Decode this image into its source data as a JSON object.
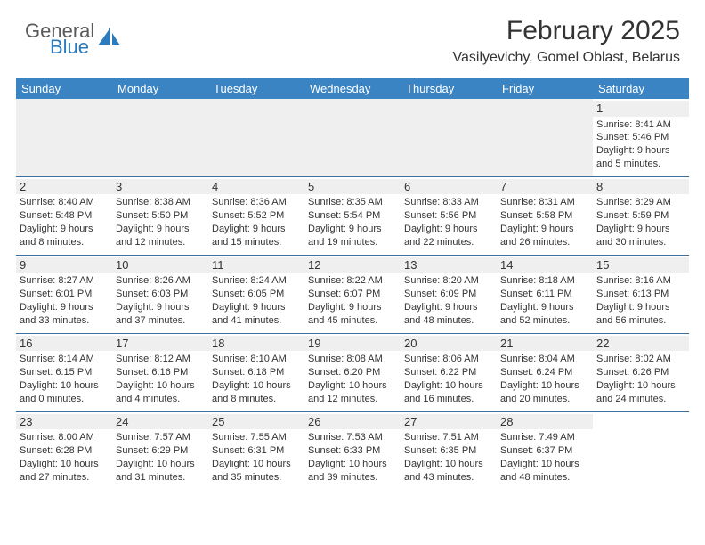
{
  "brand": {
    "line1": "General",
    "line2": "Blue"
  },
  "title": "February 2025",
  "location": "Vasilyevichy, Gomel Oblast, Belarus",
  "colors": {
    "header_bg": "#3b84c4",
    "header_text": "#ffffff",
    "rule": "#3b6fa0",
    "daynum_bg": "#efefef",
    "brand_blue": "#2b7bbf",
    "text": "#333333",
    "page_bg": "#ffffff"
  },
  "weekdays": [
    "Sunday",
    "Monday",
    "Tuesday",
    "Wednesday",
    "Thursday",
    "Friday",
    "Saturday"
  ],
  "weeks": [
    [
      null,
      null,
      null,
      null,
      null,
      null,
      {
        "n": "1",
        "sr": "Sunrise: 8:41 AM",
        "ss": "Sunset: 5:46 PM",
        "d1": "Daylight: 9 hours",
        "d2": "and 5 minutes."
      }
    ],
    [
      {
        "n": "2",
        "sr": "Sunrise: 8:40 AM",
        "ss": "Sunset: 5:48 PM",
        "d1": "Daylight: 9 hours",
        "d2": "and 8 minutes."
      },
      {
        "n": "3",
        "sr": "Sunrise: 8:38 AM",
        "ss": "Sunset: 5:50 PM",
        "d1": "Daylight: 9 hours",
        "d2": "and 12 minutes."
      },
      {
        "n": "4",
        "sr": "Sunrise: 8:36 AM",
        "ss": "Sunset: 5:52 PM",
        "d1": "Daylight: 9 hours",
        "d2": "and 15 minutes."
      },
      {
        "n": "5",
        "sr": "Sunrise: 8:35 AM",
        "ss": "Sunset: 5:54 PM",
        "d1": "Daylight: 9 hours",
        "d2": "and 19 minutes."
      },
      {
        "n": "6",
        "sr": "Sunrise: 8:33 AM",
        "ss": "Sunset: 5:56 PM",
        "d1": "Daylight: 9 hours",
        "d2": "and 22 minutes."
      },
      {
        "n": "7",
        "sr": "Sunrise: 8:31 AM",
        "ss": "Sunset: 5:58 PM",
        "d1": "Daylight: 9 hours",
        "d2": "and 26 minutes."
      },
      {
        "n": "8",
        "sr": "Sunrise: 8:29 AM",
        "ss": "Sunset: 5:59 PM",
        "d1": "Daylight: 9 hours",
        "d2": "and 30 minutes."
      }
    ],
    [
      {
        "n": "9",
        "sr": "Sunrise: 8:27 AM",
        "ss": "Sunset: 6:01 PM",
        "d1": "Daylight: 9 hours",
        "d2": "and 33 minutes."
      },
      {
        "n": "10",
        "sr": "Sunrise: 8:26 AM",
        "ss": "Sunset: 6:03 PM",
        "d1": "Daylight: 9 hours",
        "d2": "and 37 minutes."
      },
      {
        "n": "11",
        "sr": "Sunrise: 8:24 AM",
        "ss": "Sunset: 6:05 PM",
        "d1": "Daylight: 9 hours",
        "d2": "and 41 minutes."
      },
      {
        "n": "12",
        "sr": "Sunrise: 8:22 AM",
        "ss": "Sunset: 6:07 PM",
        "d1": "Daylight: 9 hours",
        "d2": "and 45 minutes."
      },
      {
        "n": "13",
        "sr": "Sunrise: 8:20 AM",
        "ss": "Sunset: 6:09 PM",
        "d1": "Daylight: 9 hours",
        "d2": "and 48 minutes."
      },
      {
        "n": "14",
        "sr": "Sunrise: 8:18 AM",
        "ss": "Sunset: 6:11 PM",
        "d1": "Daylight: 9 hours",
        "d2": "and 52 minutes."
      },
      {
        "n": "15",
        "sr": "Sunrise: 8:16 AM",
        "ss": "Sunset: 6:13 PM",
        "d1": "Daylight: 9 hours",
        "d2": "and 56 minutes."
      }
    ],
    [
      {
        "n": "16",
        "sr": "Sunrise: 8:14 AM",
        "ss": "Sunset: 6:15 PM",
        "d1": "Daylight: 10 hours",
        "d2": "and 0 minutes."
      },
      {
        "n": "17",
        "sr": "Sunrise: 8:12 AM",
        "ss": "Sunset: 6:16 PM",
        "d1": "Daylight: 10 hours",
        "d2": "and 4 minutes."
      },
      {
        "n": "18",
        "sr": "Sunrise: 8:10 AM",
        "ss": "Sunset: 6:18 PM",
        "d1": "Daylight: 10 hours",
        "d2": "and 8 minutes."
      },
      {
        "n": "19",
        "sr": "Sunrise: 8:08 AM",
        "ss": "Sunset: 6:20 PM",
        "d1": "Daylight: 10 hours",
        "d2": "and 12 minutes."
      },
      {
        "n": "20",
        "sr": "Sunrise: 8:06 AM",
        "ss": "Sunset: 6:22 PM",
        "d1": "Daylight: 10 hours",
        "d2": "and 16 minutes."
      },
      {
        "n": "21",
        "sr": "Sunrise: 8:04 AM",
        "ss": "Sunset: 6:24 PM",
        "d1": "Daylight: 10 hours",
        "d2": "and 20 minutes."
      },
      {
        "n": "22",
        "sr": "Sunrise: 8:02 AM",
        "ss": "Sunset: 6:26 PM",
        "d1": "Daylight: 10 hours",
        "d2": "and 24 minutes."
      }
    ],
    [
      {
        "n": "23",
        "sr": "Sunrise: 8:00 AM",
        "ss": "Sunset: 6:28 PM",
        "d1": "Daylight: 10 hours",
        "d2": "and 27 minutes."
      },
      {
        "n": "24",
        "sr": "Sunrise: 7:57 AM",
        "ss": "Sunset: 6:29 PM",
        "d1": "Daylight: 10 hours",
        "d2": "and 31 minutes."
      },
      {
        "n": "25",
        "sr": "Sunrise: 7:55 AM",
        "ss": "Sunset: 6:31 PM",
        "d1": "Daylight: 10 hours",
        "d2": "and 35 minutes."
      },
      {
        "n": "26",
        "sr": "Sunrise: 7:53 AM",
        "ss": "Sunset: 6:33 PM",
        "d1": "Daylight: 10 hours",
        "d2": "and 39 minutes."
      },
      {
        "n": "27",
        "sr": "Sunrise: 7:51 AM",
        "ss": "Sunset: 6:35 PM",
        "d1": "Daylight: 10 hours",
        "d2": "and 43 minutes."
      },
      {
        "n": "28",
        "sr": "Sunrise: 7:49 AM",
        "ss": "Sunset: 6:37 PM",
        "d1": "Daylight: 10 hours",
        "d2": "and 48 minutes."
      },
      null
    ]
  ]
}
